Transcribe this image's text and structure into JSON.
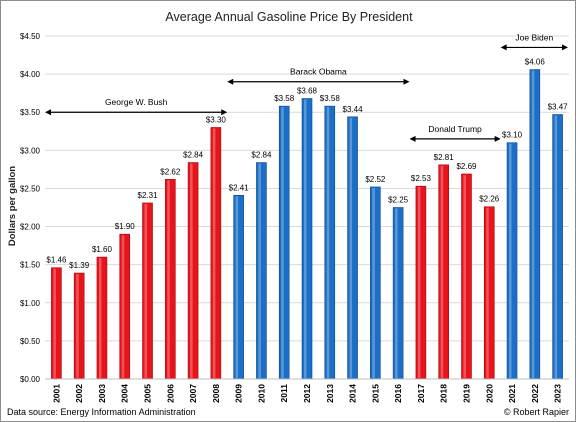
{
  "chart_data": {
    "type": "bar",
    "title": "Average Annual Gasoline Price By President",
    "ylabel": "Dollars per gallon",
    "xlabel": "",
    "ylim": [
      0,
      4.5
    ],
    "ytick_step": 0.5,
    "ytick_labels": [
      "$0.00",
      "$0.50",
      "$1.00",
      "$1.50",
      "$2.00",
      "$2.50",
      "$3.00",
      "$3.50",
      "$4.00",
      "$4.50"
    ],
    "categories": [
      "2001",
      "2002",
      "2003",
      "2004",
      "2005",
      "2006",
      "2007",
      "2008",
      "2009",
      "2010",
      "2011",
      "2012",
      "2013",
      "2014",
      "2015",
      "2016",
      "2017",
      "2018",
      "2019",
      "2020",
      "2021",
      "2022",
      "2023"
    ],
    "values": [
      1.46,
      1.39,
      1.6,
      1.9,
      2.31,
      2.62,
      2.84,
      3.3,
      2.41,
      2.84,
      3.58,
      3.68,
      3.58,
      3.44,
      2.52,
      2.25,
      2.53,
      2.81,
      2.69,
      2.26,
      3.1,
      4.06,
      3.47
    ],
    "value_labels": [
      "$1.46",
      "$1.39",
      "$1.60",
      "$1.90",
      "$2.31",
      "$2.62",
      "$2.84",
      "$3.30",
      "$2.41",
      "$2.84",
      "$3.58",
      "$3.68",
      "$3.58",
      "$3.44",
      "$2.52",
      "$2.25",
      "$2.53",
      "$2.81",
      "$2.69",
      "$2.26",
      "$3.10",
      "$4.06",
      "$3.47"
    ],
    "party": [
      "R",
      "R",
      "R",
      "R",
      "R",
      "R",
      "R",
      "R",
      "D",
      "D",
      "D",
      "D",
      "D",
      "D",
      "D",
      "D",
      "R",
      "R",
      "R",
      "R",
      "D",
      "D",
      "D"
    ],
    "colors": {
      "R": "#e8141c",
      "D": "#1b6fc7",
      "grid": "#d9d9d9",
      "arrow": "#000000"
    },
    "grid": true,
    "annotations": [
      {
        "label": "George W. Bush",
        "from_value": 2000.5,
        "to_value": 2008.5,
        "y_value": 3.5
      },
      {
        "label": "Barack Obama",
        "from_value": 2008.5,
        "to_value": 2016.5,
        "y_value": 3.9
      },
      {
        "label": "Donald Trump",
        "from_value": 2016.5,
        "to_value": 2020.5,
        "y_value": 3.15
      },
      {
        "label": "Joe Biden",
        "from_value": 2020.5,
        "to_value": 2023.5,
        "y_value": 4.35
      }
    ]
  },
  "footer": {
    "source": "Data source: Energy Information Administration",
    "credit": "© Robert Rapier"
  }
}
